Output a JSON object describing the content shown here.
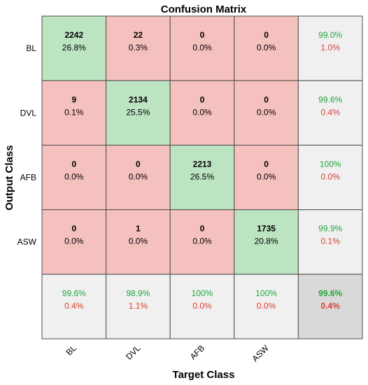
{
  "chart_data": {
    "type": "heatmap",
    "title": "Confusion Matrix",
    "xlabel": "Target Class",
    "ylabel": "Output Class",
    "row_labels": [
      "BL",
      "DVL",
      "AFB",
      "ASW"
    ],
    "col_labels": [
      "BL",
      "DVL",
      "AFB",
      "ASW"
    ],
    "counts": [
      [
        2242,
        22,
        0,
        0
      ],
      [
        9,
        2134,
        0,
        0
      ],
      [
        0,
        0,
        2213,
        0
      ],
      [
        0,
        1,
        0,
        1735
      ]
    ],
    "percents": [
      [
        "26.8%",
        "0.3%",
        "0.0%",
        "0.0%"
      ],
      [
        "0.1%",
        "25.5%",
        "0.0%",
        "0.0%"
      ],
      [
        "0.0%",
        "0.0%",
        "26.5%",
        "0.0%"
      ],
      [
        "0.0%",
        "0.0%",
        "0.0%",
        "20.8%"
      ]
    ],
    "row_summary": [
      {
        "correct": "99.0%",
        "error": "1.0%"
      },
      {
        "correct": "99.6%",
        "error": "0.4%"
      },
      {
        "correct": "100%",
        "error": "0.0%"
      },
      {
        "correct": "99.9%",
        "error": "0.1%"
      }
    ],
    "col_summary": [
      {
        "correct": "99.6%",
        "error": "0.4%"
      },
      {
        "correct": "98.9%",
        "error": "1.1%"
      },
      {
        "correct": "100%",
        "error": "0.0%"
      },
      {
        "correct": "100%",
        "error": "0.0%"
      }
    ],
    "overall": {
      "correct": "99.6%",
      "error": "0.4%"
    }
  },
  "colors": {
    "diagonal": "#bce4c1",
    "off_diagonal": "#f5c1bf",
    "summary": "#f0f0f0",
    "overall": "#d9d9d9",
    "grid": "#4d4d4d",
    "correct_text": "#22a83a",
    "error_text": "#e03c31"
  }
}
